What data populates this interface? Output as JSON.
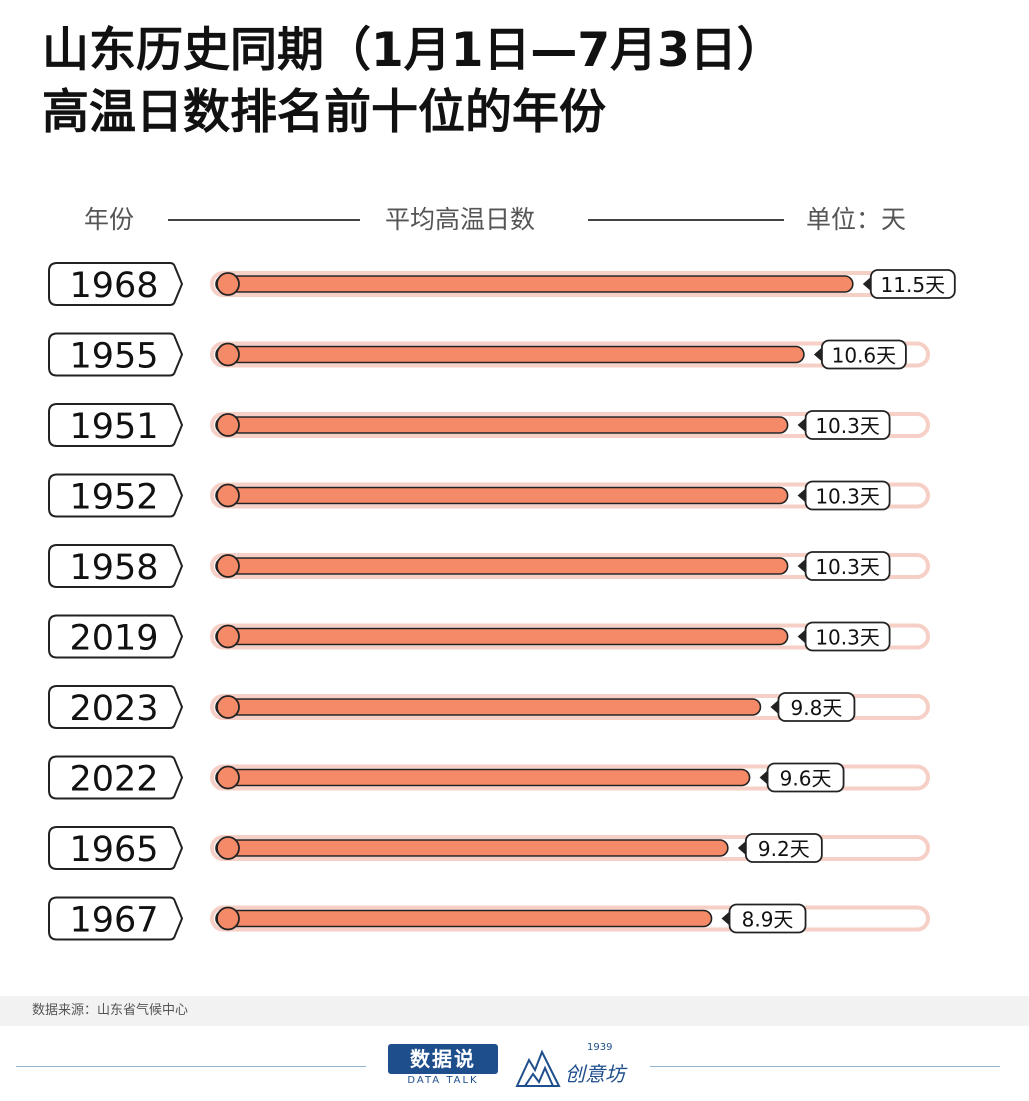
{
  "title": {
    "line1": "山东历史同期（1月1日—7月3日）",
    "line2": "高温日数排名前十位的年份"
  },
  "header": {
    "left": "年份",
    "center": "平均高温日数",
    "right": "单位：天"
  },
  "chart_data": {
    "type": "bar",
    "orientation": "horizontal",
    "categories": [
      "1968",
      "1955",
      "1951",
      "1952",
      "1958",
      "2019",
      "2023",
      "2022",
      "1965",
      "1967"
    ],
    "values": [
      11.5,
      10.6,
      10.3,
      10.3,
      10.3,
      10.3,
      9.8,
      9.6,
      9.2,
      8.9
    ],
    "value_labels": [
      "11.5天",
      "10.6天",
      "10.3天",
      "10.3天",
      "10.3天",
      "10.3天",
      "9.8天",
      "9.6天",
      "9.2天",
      "8.9天"
    ],
    "xlim": [
      0,
      12.7
    ],
    "grid": false,
    "colors": {
      "bar": "#f58a68",
      "track": "#f6cfc6",
      "outline": "#222222"
    }
  },
  "source": "数据来源：山东省气候中心",
  "logos": {
    "left_name": "数据说",
    "left_sub": "DATA TALK",
    "right_year": "1939",
    "right_name": "创意坊"
  }
}
